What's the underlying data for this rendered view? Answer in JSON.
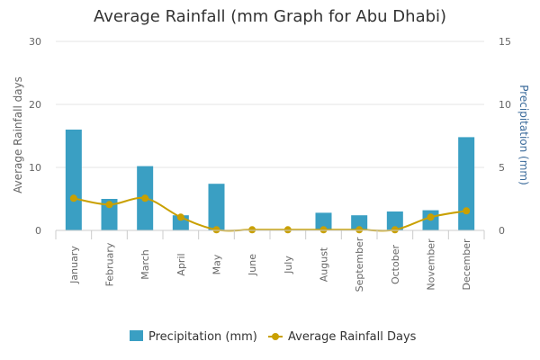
{
  "chart_data": {
    "type": "bar",
    "title": "Average Rainfall (mm Graph for Abu Dhabi)",
    "categories": [
      "January",
      "February",
      "March",
      "April",
      "May",
      "June",
      "July",
      "August",
      "September",
      "October",
      "November",
      "December"
    ],
    "series": [
      {
        "name": "Precipitation (mm)",
        "type": "bar",
        "axis": "right",
        "color": "#3a9fc3",
        "values": [
          8.0,
          2.5,
          5.1,
          1.2,
          3.7,
          0.0,
          0.0,
          1.4,
          1.2,
          1.5,
          1.6,
          7.4
        ]
      },
      {
        "name": "Average Rainfall Days",
        "type": "line",
        "axis": "left",
        "color": "#c9a000",
        "values": [
          5.1,
          4.1,
          5.1,
          2.1,
          0.1,
          0.1,
          0.1,
          0.1,
          0.1,
          0.1,
          2.1,
          3.1
        ]
      }
    ],
    "left_axis": {
      "label": "Average Rainfall days",
      "ylim": [
        0,
        30
      ],
      "ticks": [
        "0",
        "10",
        "20",
        "30"
      ]
    },
    "right_axis": {
      "label": "Precipitation (mm)",
      "ylim": [
        0,
        15
      ],
      "ticks": [
        "0",
        "5",
        "10",
        "15"
      ],
      "color": "#3a6a9a"
    },
    "grid": true,
    "legend_position": "bottom-center"
  }
}
